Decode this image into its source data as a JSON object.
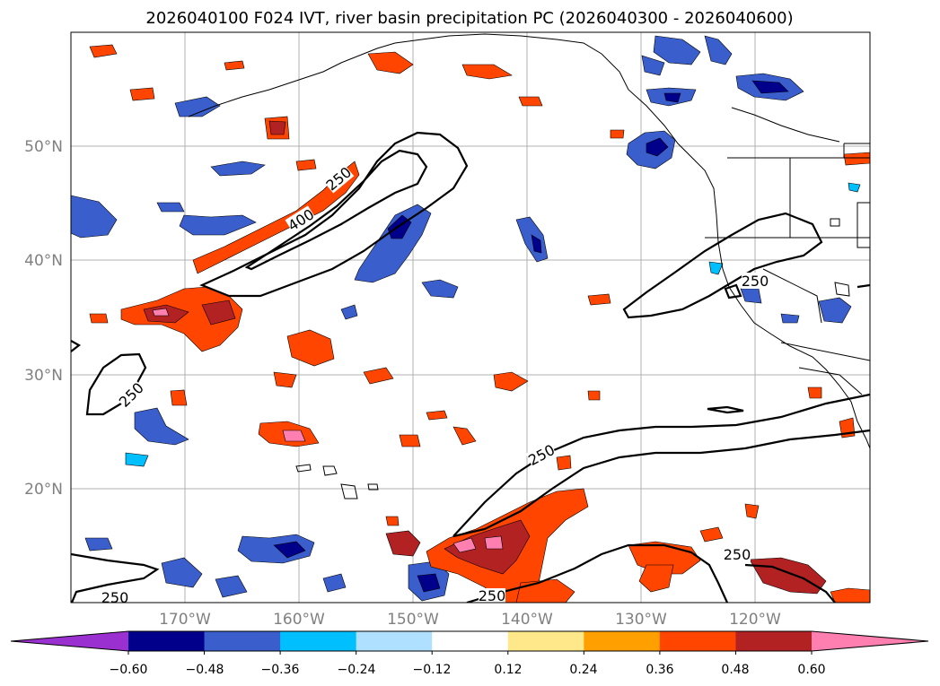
{
  "title": "2026040100 F024 IVT, river basin precipitation PC (2026040300 - 2026040600)",
  "lat_labels": [
    "50°N",
    "40°N",
    "30°N",
    "20°N"
  ],
  "lon_labels": [
    "170°W",
    "160°W",
    "150°W",
    "140°W",
    "130°W",
    "120°W"
  ],
  "contour_labels": [
    "250",
    "400",
    "250",
    "250",
    "250",
    "250",
    "250",
    "250"
  ],
  "colorbar": {
    "ticks": [
      "−0.60",
      "−0.48",
      "−0.36",
      "−0.24",
      "−0.12",
      "0.12",
      "0.24",
      "0.36",
      "0.48",
      "0.60"
    ],
    "colors": [
      "#9b30d0",
      "#00008b",
      "#3a5fcd",
      "#00bfff",
      "#b0e0ff",
      "#ffffff",
      "#ffe88a",
      "#ffa000",
      "#ff4500",
      "#b22222",
      "#ff80b0"
    ]
  }
}
